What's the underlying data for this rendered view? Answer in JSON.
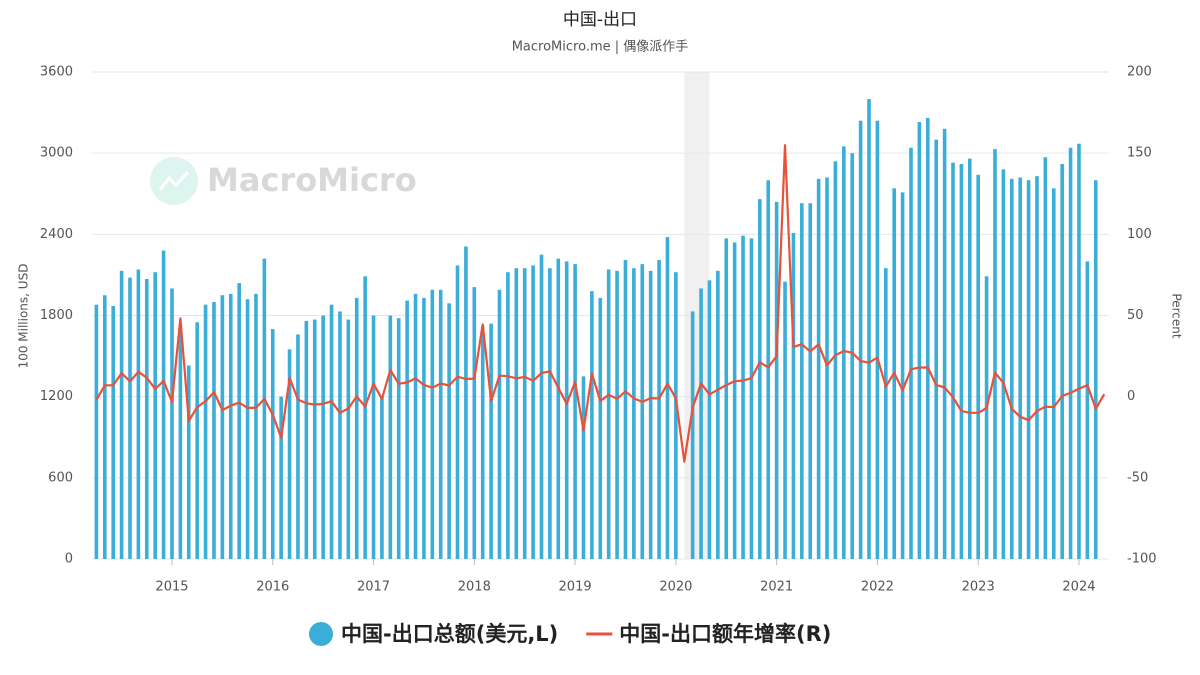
{
  "chart_data": {
    "type": "bar_line",
    "title": "中国-出口",
    "subtitle": "MacroMicro.me | 偶像派作手",
    "watermark": "MacroMicro",
    "y_label": "100 Millions, USD",
    "y2_label": "Percent",
    "x": [
      "2014-04",
      "2014-05",
      "2014-06",
      "2014-07",
      "2014-08",
      "2014-09",
      "2014-10",
      "2014-11",
      "2014-12",
      "2015-01",
      "2015-02",
      "2015-03",
      "2015-04",
      "2015-05",
      "2015-06",
      "2015-07",
      "2015-08",
      "2015-09",
      "2015-10",
      "2015-11",
      "2015-12",
      "2016-01",
      "2016-02",
      "2016-03",
      "2016-04",
      "2016-05",
      "2016-06",
      "2016-07",
      "2016-08",
      "2016-09",
      "2016-10",
      "2016-11",
      "2016-12",
      "2017-01",
      "2017-02",
      "2017-03",
      "2017-04",
      "2017-05",
      "2017-06",
      "2017-07",
      "2017-08",
      "2017-09",
      "2017-10",
      "2017-11",
      "2017-12",
      "2018-01",
      "2018-02",
      "2018-03",
      "2018-04",
      "2018-05",
      "2018-06",
      "2018-07",
      "2018-08",
      "2018-09",
      "2018-10",
      "2018-11",
      "2018-12",
      "2019-01",
      "2019-02",
      "2019-03",
      "2019-04",
      "2019-05",
      "2019-06",
      "2019-07",
      "2019-08",
      "2019-09",
      "2019-10",
      "2019-11",
      "2019-12",
      "2020-01",
      "2020-02",
      "2020-03",
      "2020-04",
      "2020-05",
      "2020-06",
      "2020-07",
      "2020-08",
      "2020-09",
      "2020-10",
      "2020-11",
      "2020-12",
      "2021-01",
      "2021-02",
      "2021-03",
      "2021-04",
      "2021-05",
      "2021-06",
      "2021-07",
      "2021-08",
      "2021-09",
      "2021-10",
      "2021-11",
      "2021-12",
      "2022-01",
      "2022-02",
      "2022-03",
      "2022-04",
      "2022-05",
      "2022-06",
      "2022-07",
      "2022-08",
      "2022-09",
      "2022-10",
      "2022-11",
      "2022-12",
      "2023-01",
      "2023-02",
      "2023-03",
      "2023-04",
      "2023-05",
      "2023-06",
      "2023-07",
      "2023-08",
      "2023-09",
      "2023-10",
      "2023-11",
      "2023-12",
      "2024-01",
      "2024-02",
      "2024-03",
      "2024-04"
    ],
    "series": [
      {
        "name": "中国-出口总额(美元,L)",
        "type": "bar",
        "color": "#3aaed8",
        "axis": "y",
        "values": [
          1880,
          1950,
          1870,
          2130,
          2080,
          2140,
          2070,
          2120,
          2280,
          2000,
          1690,
          1430,
          1750,
          1880,
          1900,
          1950,
          1960,
          2040,
          1920,
          1960,
          2220,
          1700,
          1200,
          1550,
          1660,
          1760,
          1770,
          1800,
          1880,
          1830,
          1770,
          1930,
          2090,
          1800,
          1200,
          1800,
          1780,
          1910,
          1960,
          1930,
          1990,
          1990,
          1890,
          2170,
          2310,
          2010,
          1720,
          1740,
          1990,
          2120,
          2150,
          2150,
          2170,
          2250,
          2150,
          2220,
          2200,
          2180,
          1350,
          1980,
          1930,
          2140,
          2130,
          2210,
          2150,
          2180,
          2130,
          2210,
          2380,
          2120,
          null,
          1830,
          2000,
          2060,
          2130,
          2370,
          2340,
          2390,
          2370,
          2660,
          2800,
          2640,
          2050,
          2410,
          2630,
          2630,
          2810,
          2820,
          2940,
          3050,
          3000,
          3240,
          3400,
          3240,
          2150,
          2740,
          2710,
          3040,
          3230,
          3260,
          3100,
          3180,
          2930,
          2920,
          2960,
          2840,
          2090,
          3030,
          2880,
          2810,
          2820,
          2800,
          2830,
          2970,
          2740,
          2920,
          3040,
          3070,
          2200,
          2800,
          null
        ]
      },
      {
        "name": "中国-出口额年增率(R)",
        "type": "line",
        "color": "#e8513a",
        "axis": "y2",
        "values": [
          -2,
          7,
          7,
          14.5,
          9.4,
          15.3,
          11.6,
          4.7,
          9.7,
          -3.3,
          48.3,
          -15,
          -6.4,
          -2.8,
          2.8,
          -8.3,
          -5.5,
          -3.7,
          -6.9,
          -6.8,
          -1.4,
          -11.2,
          -25.4,
          11.5,
          -1.8,
          -4.1,
          -4.8,
          -4.4,
          -2.8,
          -10,
          -7.3,
          0.1,
          -6.1,
          7.9,
          -1.3,
          16.4,
          8,
          8.7,
          11.3,
          7.2,
          5.5,
          8.1,
          6.9,
          12.3,
          10.9,
          11.1,
          44.5,
          -2.7,
          12.9,
          12.6,
          11.3,
          12.2,
          9.8,
          14.5,
          15.6,
          5.4,
          -4.4,
          9.1,
          -20.7,
          14.2,
          -2.7,
          1.1,
          -1.3,
          3.3,
          -1,
          -3.2,
          -0.9,
          -1.1,
          7.9,
          -1,
          -40,
          -6.6,
          8.2,
          1.4,
          4.3,
          7.2,
          9.5,
          9.9,
          11.4,
          21.1,
          18.1,
          24.9,
          154.9,
          30.6,
          32.3,
          27.9,
          32.2,
          19.3,
          25.6,
          28.1,
          27.1,
          22,
          20.9,
          24.1,
          6.2,
          14.7,
          3.9,
          16.9,
          17.9,
          18,
          7.1,
          5.7,
          -0.3,
          -8.9,
          -9.9,
          -10,
          -7,
          14.8,
          8.5,
          -7.5,
          -12.4,
          -14.5,
          -8.8,
          -6.2,
          -6.4,
          0.5,
          2.3,
          5,
          7.1,
          -7.5,
          1.5
        ]
      }
    ],
    "ylim": [
      0,
      3600
    ],
    "yticks": [
      0,
      600,
      1200,
      1800,
      2400,
      3000,
      3600
    ],
    "y2lim": [
      -100,
      200
    ],
    "y2ticks": [
      -100,
      -50,
      0,
      50,
      100,
      150,
      200
    ],
    "xticks": [
      {
        "value": "2015-01",
        "label": "2015"
      },
      {
        "value": "2016-01",
        "label": "2016"
      },
      {
        "value": "2017-01",
        "label": "2017"
      },
      {
        "value": "2018-01",
        "label": "2018"
      },
      {
        "value": "2019-01",
        "label": "2019"
      },
      {
        "value": "2020-01",
        "label": "2020"
      },
      {
        "value": "2021-01",
        "label": "2021"
      },
      {
        "value": "2022-01",
        "label": "2022"
      },
      {
        "value": "2023-01",
        "label": "2023"
      },
      {
        "value": "2024-01",
        "label": "2024"
      }
    ],
    "shaded": [
      [
        "2020-02",
        "2020-05"
      ]
    ],
    "grid": true,
    "legend": "bottom"
  }
}
